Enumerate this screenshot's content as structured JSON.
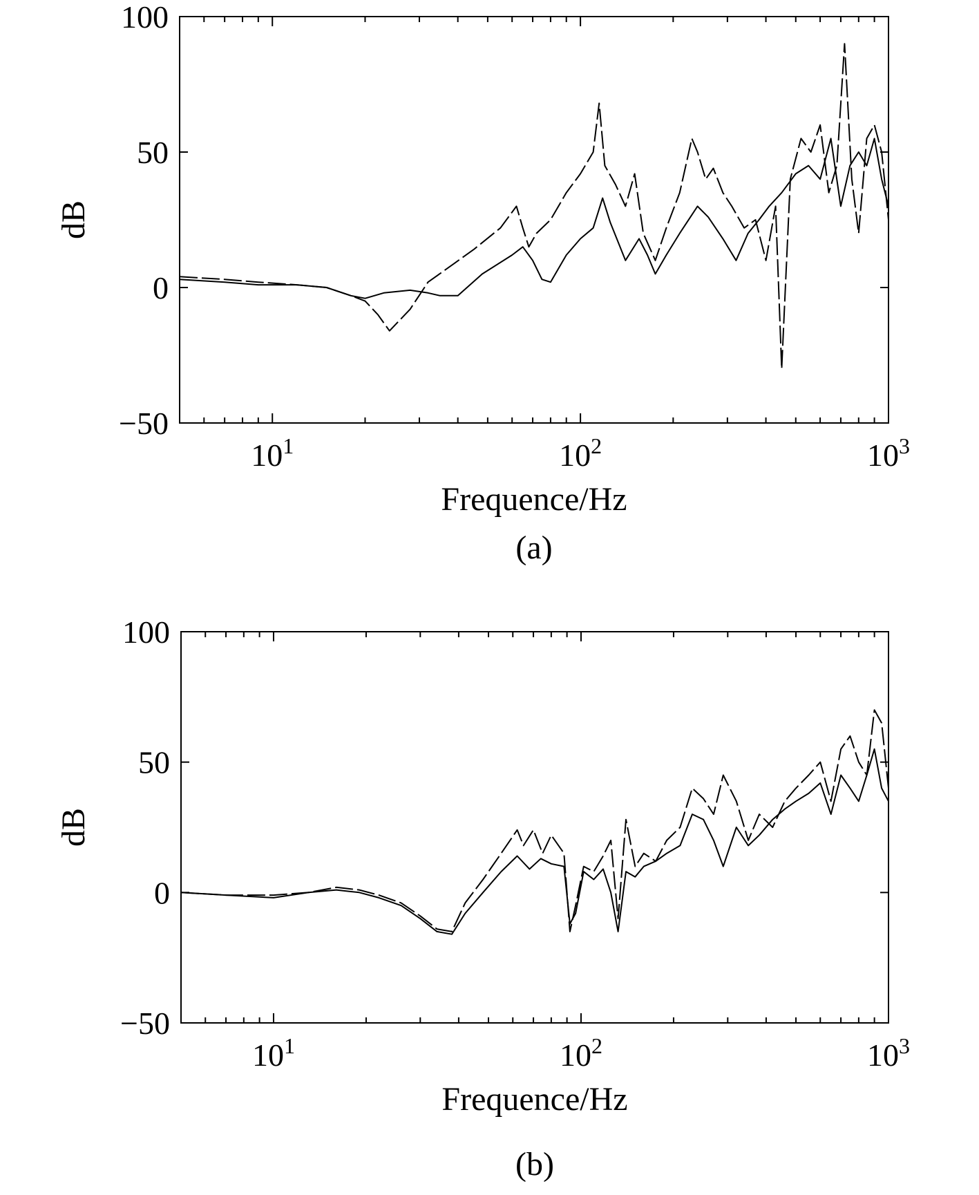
{
  "chart_data": [
    {
      "type": "line",
      "panel_label": "(a)",
      "xlabel": "Frequence/Hz",
      "ylabel": "dB",
      "xscale": "log",
      "xlim": [
        5,
        1000
      ],
      "ylim": [
        -50,
        100
      ],
      "yticks": [
        -50,
        0,
        50,
        100
      ],
      "xticks": [
        {
          "base": "10",
          "exp": "1"
        },
        {
          "base": "10",
          "exp": "2"
        },
        {
          "base": "10",
          "exp": "3"
        }
      ],
      "grid": false,
      "legend": "none",
      "series": [
        {
          "style": "solid",
          "x": [
            5,
            7,
            9,
            12,
            15,
            18,
            20,
            23,
            28,
            32,
            35,
            40,
            48,
            60,
            65,
            70,
            75,
            80,
            90,
            100,
            110,
            118,
            125,
            140,
            155,
            165,
            175,
            190,
            210,
            240,
            260,
            290,
            320,
            350,
            380,
            410,
            450,
            500,
            550,
            600,
            650,
            700,
            750,
            800,
            850,
            900,
            950,
            1000
          ],
          "y": [
            3,
            2,
            1,
            1,
            0,
            -3,
            -4,
            -2,
            -1,
            -2,
            -3,
            -3,
            5,
            12,
            15,
            10,
            3,
            2,
            12,
            18,
            22,
            33,
            24,
            10,
            18,
            12,
            5,
            12,
            20,
            30,
            26,
            18,
            10,
            20,
            25,
            30,
            35,
            42,
            45,
            40,
            55,
            30,
            45,
            50,
            45,
            55,
            40,
            30
          ]
        },
        {
          "style": "dashed",
          "x": [
            5,
            7,
            9,
            12,
            15,
            18,
            20,
            22,
            24,
            28,
            32,
            38,
            45,
            55,
            62,
            65,
            68,
            72,
            80,
            90,
            100,
            110,
            115,
            120,
            130,
            140,
            150,
            160,
            175,
            190,
            210,
            230,
            240,
            255,
            270,
            290,
            310,
            340,
            370,
            400,
            430,
            450,
            480,
            520,
            560,
            600,
            640,
            680,
            720,
            760,
            800,
            850,
            900,
            950,
            1000
          ],
          "y": [
            4,
            3,
            2,
            1,
            0,
            -3,
            -5,
            -10,
            -16,
            -8,
            2,
            8,
            14,
            22,
            30,
            22,
            15,
            20,
            25,
            35,
            42,
            50,
            68,
            45,
            38,
            30,
            42,
            20,
            10,
            22,
            35,
            55,
            50,
            40,
            44,
            35,
            30,
            22,
            25,
            10,
            30,
            -30,
            40,
            55,
            50,
            60,
            35,
            45,
            90,
            40,
            20,
            55,
            60,
            50,
            25
          ]
        }
      ]
    },
    {
      "type": "line",
      "panel_label": "(b)",
      "xlabel": "Frequence/Hz",
      "ylabel": "dB",
      "xscale": "log",
      "xlim": [
        5,
        1000
      ],
      "ylim": [
        -50,
        100
      ],
      "yticks": [
        -50,
        0,
        50,
        100
      ],
      "xticks": [
        {
          "base": "10",
          "exp": "1"
        },
        {
          "base": "10",
          "exp": "2"
        },
        {
          "base": "10",
          "exp": "3"
        }
      ],
      "grid": false,
      "legend": "none",
      "series": [
        {
          "style": "solid",
          "x": [
            5,
            7,
            10,
            13,
            16,
            19,
            22,
            26,
            30,
            34,
            38,
            42,
            48,
            55,
            62,
            68,
            74,
            80,
            88,
            92,
            96,
            102,
            110,
            118,
            125,
            132,
            140,
            150,
            160,
            175,
            190,
            210,
            230,
            250,
            270,
            290,
            320,
            350,
            380,
            420,
            460,
            500,
            550,
            600,
            650,
            700,
            750,
            800,
            850,
            900,
            950,
            1000
          ],
          "y": [
            0,
            -1,
            -2,
            0,
            1,
            0,
            -2,
            -5,
            -10,
            -15,
            -16,
            -8,
            0,
            8,
            14,
            9,
            13,
            11,
            10,
            -12,
            -8,
            8,
            5,
            9,
            0,
            -15,
            8,
            6,
            10,
            12,
            15,
            18,
            30,
            28,
            20,
            10,
            25,
            18,
            22,
            28,
            32,
            35,
            38,
            42,
            30,
            45,
            40,
            35,
            45,
            55,
            40,
            35
          ]
        },
        {
          "style": "dashed",
          "x": [
            5,
            7,
            10,
            13,
            16,
            19,
            22,
            26,
            30,
            34,
            38,
            42,
            48,
            55,
            62,
            65,
            70,
            75,
            80,
            88,
            92,
            96,
            102,
            110,
            118,
            125,
            132,
            140,
            150,
            160,
            175,
            190,
            210,
            230,
            250,
            270,
            290,
            320,
            350,
            380,
            420,
            460,
            500,
            550,
            600,
            650,
            700,
            750,
            800,
            850,
            900,
            950,
            1000
          ],
          "y": [
            0,
            -1,
            -1,
            0,
            2,
            1,
            -1,
            -4,
            -9,
            -14,
            -15,
            -4,
            5,
            15,
            24,
            18,
            24,
            15,
            22,
            15,
            -15,
            -5,
            10,
            8,
            14,
            20,
            -10,
            28,
            10,
            15,
            12,
            20,
            25,
            40,
            36,
            30,
            45,
            35,
            20,
            30,
            25,
            35,
            40,
            45,
            50,
            35,
            55,
            60,
            50,
            45,
            70,
            65,
            40
          ]
        }
      ]
    }
  ]
}
